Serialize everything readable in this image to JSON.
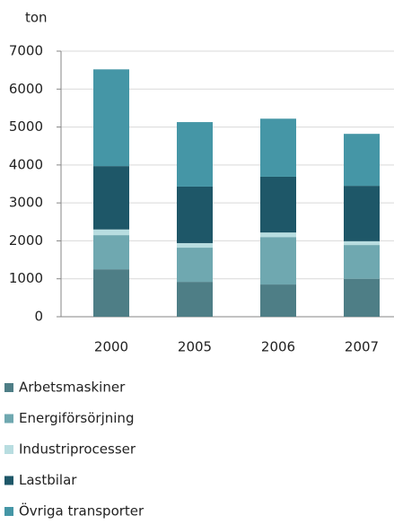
{
  "chart_data": {
    "type": "bar",
    "stacked": true,
    "y_unit": "ton",
    "categories": [
      "2000",
      "2005",
      "2006",
      "2007"
    ],
    "series": [
      {
        "name": "Arbetsmaskiner",
        "color": "#4e7e86",
        "values": [
          1250,
          920,
          850,
          1000
        ]
      },
      {
        "name": "Energiförsörjning",
        "color": "#6fa8b0",
        "values": [
          900,
          900,
          1250,
          890
        ]
      },
      {
        "name": "Industriprocesser",
        "color": "#b8dde0",
        "values": [
          150,
          120,
          120,
          100
        ]
      },
      {
        "name": "Lastbilar",
        "color": "#1e5768",
        "values": [
          1670,
          1490,
          1470,
          1460
        ]
      },
      {
        "name": "Övriga transporter",
        "color": "#4596a6",
        "values": [
          2550,
          1700,
          1530,
          1370
        ]
      }
    ],
    "ylim": [
      0,
      7000
    ],
    "yticks": [
      0,
      1000,
      2000,
      3000,
      4000,
      5000,
      6000,
      7000
    ],
    "grid": true,
    "legend": "bottom"
  }
}
